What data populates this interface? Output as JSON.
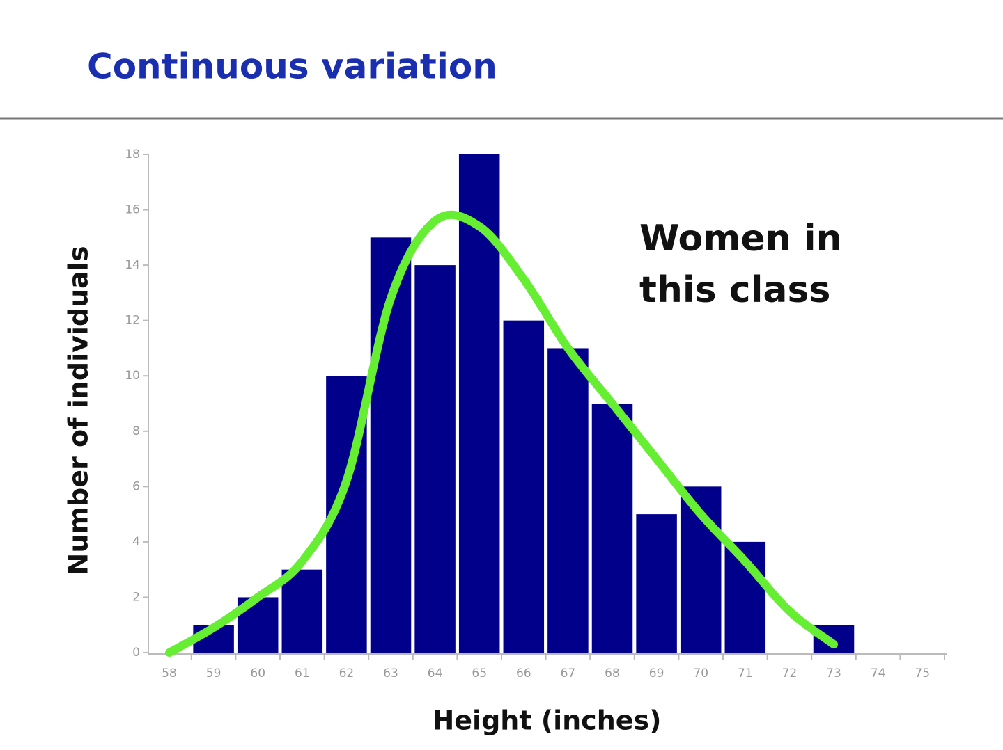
{
  "chart_data": {
    "type": "bar",
    "title": "Continuous variation",
    "x_label": "Height (inches)",
    "y_label": "Number of individuals",
    "annotation": [
      "Women in",
      "this class"
    ],
    "categories": [
      "58",
      "59",
      "60",
      "61",
      "62",
      "63",
      "64",
      "65",
      "66",
      "67",
      "68",
      "69",
      "70",
      "71",
      "72",
      "73",
      "74",
      "75"
    ],
    "series": [
      {
        "type": "bar",
        "color": "#00008b",
        "values": [
          0,
          1,
          2,
          3,
          10,
          15,
          14,
          18,
          12,
          11,
          9,
          5,
          6,
          4,
          0,
          1,
          0,
          0
        ]
      },
      {
        "type": "line",
        "color": "#66ee33",
        "values": [
          0,
          0.9,
          2.0,
          3.3,
          6.2,
          12.8,
          15.6,
          15.4,
          13.5,
          11.0,
          9.0,
          7.0,
          5.0,
          3.3,
          1.5,
          0.3,
          null,
          null
        ]
      }
    ],
    "ylim": [
      0,
      18
    ],
    "yticks": [
      0,
      2,
      4,
      6,
      8,
      10,
      12,
      14,
      16,
      18
    ]
  }
}
